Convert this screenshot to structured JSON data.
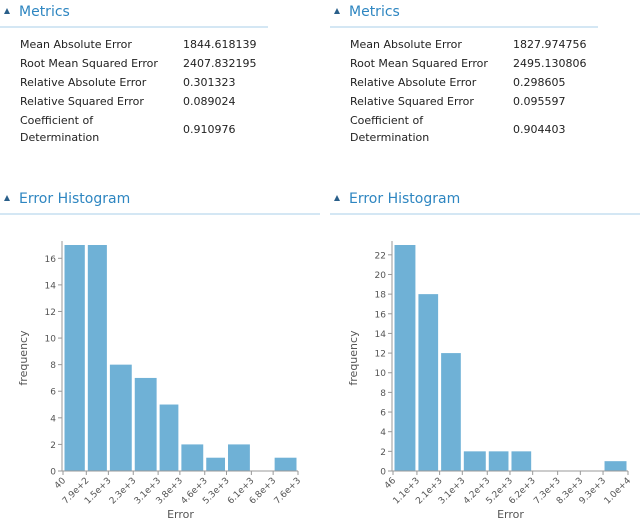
{
  "panels": [
    {
      "metrics_title": "Metrics",
      "metrics": [
        {
          "label": "Mean Absolute Error",
          "value": 1844.618139
        },
        {
          "label": "Root Mean Squared Error",
          "value": 2407.832195
        },
        {
          "label": "Relative Absolute Error",
          "value": 0.301323
        },
        {
          "label": "Relative Squared Error",
          "value": 0.089024
        },
        {
          "label": "Coefficient of Determination",
          "value": 0.910976
        }
      ],
      "histogram_title": "Error Histogram"
    },
    {
      "metrics_title": "Metrics",
      "metrics": [
        {
          "label": "Mean Absolute Error",
          "value": 1827.974756
        },
        {
          "label": "Root Mean Squared Error",
          "value": 2495.130806
        },
        {
          "label": "Relative Absolute Error",
          "value": 0.298605
        },
        {
          "label": "Relative Squared Error",
          "value": 0.095597
        },
        {
          "label": "Coefficient of Determination",
          "value": 0.904403
        }
      ],
      "histogram_title": "Error Histogram"
    }
  ],
  "chart_data": [
    {
      "type": "histogram",
      "x_label": "Error",
      "y_label": "frequency",
      "color": "#6fb1d6",
      "bins": [
        40,
        {
          "value": 790,
          "label": "7.9e+2"
        },
        {
          "value": 1500,
          "label": "1.5e+3"
        },
        {
          "value": 2300,
          "label": "2.3e+3"
        },
        {
          "value": 3100,
          "label": "3.1e+3"
        },
        {
          "value": 3800,
          "label": "3.8e+3"
        },
        {
          "value": 4600,
          "label": "4.6e+3"
        },
        {
          "value": 5300,
          "label": "5.3e+3"
        },
        {
          "value": 6100,
          "label": "6.1e+3"
        },
        {
          "value": 6800,
          "label": "6.8e+3"
        },
        {
          "value": 7600,
          "label": "7.6e+3"
        }
      ],
      "values": [
        17,
        17,
        8,
        7,
        5,
        2,
        1,
        2,
        0,
        1
      ],
      "xlim": [
        40,
        7600
      ],
      "ylim": [
        0,
        17
      ],
      "yticks": [
        0,
        2,
        4,
        6,
        8,
        10,
        12,
        14,
        16
      ]
    },
    {
      "type": "histogram",
      "x_label": "Error",
      "y_label": "frequency",
      "color": "#6fb1d6",
      "bins": [
        46,
        {
          "value": 1100,
          "label": "1.1e+3"
        },
        {
          "value": 2100,
          "label": "2.1e+3"
        },
        {
          "value": 3100,
          "label": "3.1e+3"
        },
        {
          "value": 4200,
          "label": "4.2e+3"
        },
        {
          "value": 5200,
          "label": "5.2e+3"
        },
        {
          "value": 6200,
          "label": "6.2e+3"
        },
        {
          "value": 7300,
          "label": "7.3e+3"
        },
        {
          "value": 8300,
          "label": "8.3e+3"
        },
        {
          "value": 9300,
          "label": "9.3e+3"
        },
        {
          "value": 10400,
          "label": "1.0e+4"
        }
      ],
      "values": [
        23,
        18,
        12,
        2,
        2,
        2,
        0,
        0,
        0,
        1
      ],
      "xlim": [
        46,
        10400
      ],
      "ylim": [
        0,
        23
      ],
      "yticks": [
        0,
        2,
        4,
        6,
        8,
        10,
        12,
        14,
        16,
        18,
        20,
        22
      ]
    }
  ]
}
